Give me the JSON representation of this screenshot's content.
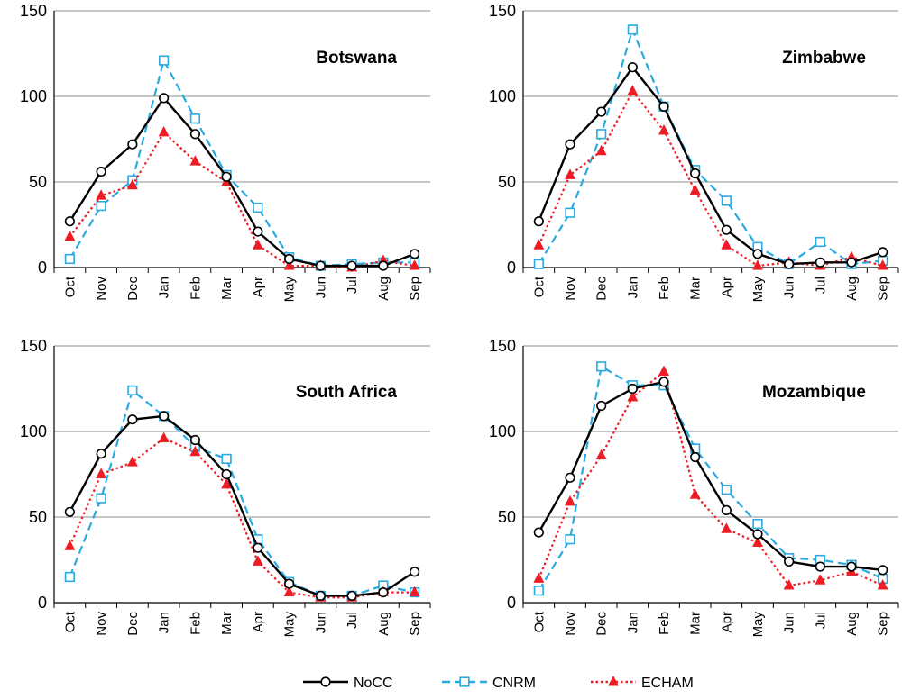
{
  "chart_data": [
    {
      "type": "line",
      "title": "Botswana",
      "categories": [
        "Oct",
        "Nov",
        "Dec",
        "Jan",
        "Feb",
        "Mar",
        "Apr",
        "May",
        "Jun",
        "Jul",
        "Aug",
        "Sep"
      ],
      "ylim": [
        0,
        150
      ],
      "yticks": [
        0,
        50,
        100,
        150
      ],
      "grid": true,
      "series": [
        {
          "name": "NoCC",
          "values": [
            27,
            56,
            72,
            99,
            78,
            53,
            21,
            5,
            1,
            1,
            1,
            8
          ]
        },
        {
          "name": "CNRM",
          "values": [
            5,
            36,
            51,
            121,
            87,
            54,
            35,
            6,
            1,
            2,
            3,
            3
          ]
        },
        {
          "name": "ECHAM",
          "values": [
            18,
            42,
            48,
            79,
            62,
            50,
            13,
            1,
            1,
            0,
            4,
            1
          ]
        }
      ]
    },
    {
      "type": "line",
      "title": "Zimbabwe",
      "categories": [
        "Oct",
        "Nov",
        "Dec",
        "Jan",
        "Feb",
        "Mar",
        "Apr",
        "May",
        "Jun",
        "Jul",
        "Aug",
        "Sep"
      ],
      "ylim": [
        0,
        150
      ],
      "yticks": [
        0,
        50,
        100,
        150
      ],
      "grid": true,
      "series": [
        {
          "name": "NoCC",
          "values": [
            27,
            72,
            91,
            117,
            94,
            55,
            22,
            8,
            2,
            3,
            3,
            9
          ]
        },
        {
          "name": "CNRM",
          "values": [
            2,
            32,
            78,
            139,
            94,
            57,
            39,
            12,
            2,
            15,
            2,
            4
          ]
        },
        {
          "name": "ECHAM",
          "values": [
            13,
            54,
            68,
            103,
            80,
            45,
            13,
            1,
            3,
            1,
            6,
            1
          ]
        }
      ]
    },
    {
      "type": "line",
      "title": "South Africa",
      "categories": [
        "Oct",
        "Nov",
        "Dec",
        "Jan",
        "Feb",
        "Mar",
        "Apr",
        "May",
        "Jun",
        "Jul",
        "Aug",
        "Sep"
      ],
      "ylim": [
        0,
        150
      ],
      "yticks": [
        0,
        50,
        100,
        150
      ],
      "grid": true,
      "series": [
        {
          "name": "NoCC",
          "values": [
            53,
            87,
            107,
            109,
            95,
            75,
            32,
            11,
            4,
            4,
            6,
            18
          ]
        },
        {
          "name": "CNRM",
          "values": [
            15,
            61,
            124,
            109,
            91,
            84,
            37,
            12,
            4,
            4,
            10,
            6
          ]
        },
        {
          "name": "ECHAM",
          "values": [
            33,
            75,
            82,
            96,
            88,
            69,
            24,
            6,
            3,
            3,
            6,
            6
          ]
        }
      ]
    },
    {
      "type": "line",
      "title": "Mozambique",
      "categories": [
        "Oct",
        "Nov",
        "Dec",
        "Jan",
        "Feb",
        "Mar",
        "Apr",
        "May",
        "Jun",
        "Jul",
        "Aug",
        "Sep"
      ],
      "ylim": [
        0,
        150
      ],
      "yticks": [
        0,
        50,
        100,
        150
      ],
      "grid": true,
      "series": [
        {
          "name": "NoCC",
          "values": [
            41,
            73,
            115,
            125,
            129,
            85,
            54,
            40,
            24,
            21,
            21,
            19
          ]
        },
        {
          "name": "CNRM",
          "values": [
            7,
            37,
            138,
            127,
            127,
            90,
            66,
            46,
            26,
            25,
            22,
            14
          ]
        },
        {
          "name": "ECHAM",
          "values": [
            14,
            59,
            86,
            120,
            135,
            63,
            43,
            35,
            10,
            13,
            18,
            10
          ]
        }
      ]
    }
  ],
  "legend": {
    "placement": "bottom-center",
    "entries": [
      {
        "name": "NoCC",
        "color": "#000000",
        "marker": "circle",
        "line": "solid"
      },
      {
        "name": "CNRM",
        "color": "#29aae1",
        "marker": "square",
        "line": "dashed"
      },
      {
        "name": "ECHAM",
        "color": "#ee1c24",
        "marker": "triangle",
        "line": "dotted"
      }
    ]
  },
  "style": {
    "gridColor": "#8c8c8c",
    "axisColor": "#000000"
  }
}
